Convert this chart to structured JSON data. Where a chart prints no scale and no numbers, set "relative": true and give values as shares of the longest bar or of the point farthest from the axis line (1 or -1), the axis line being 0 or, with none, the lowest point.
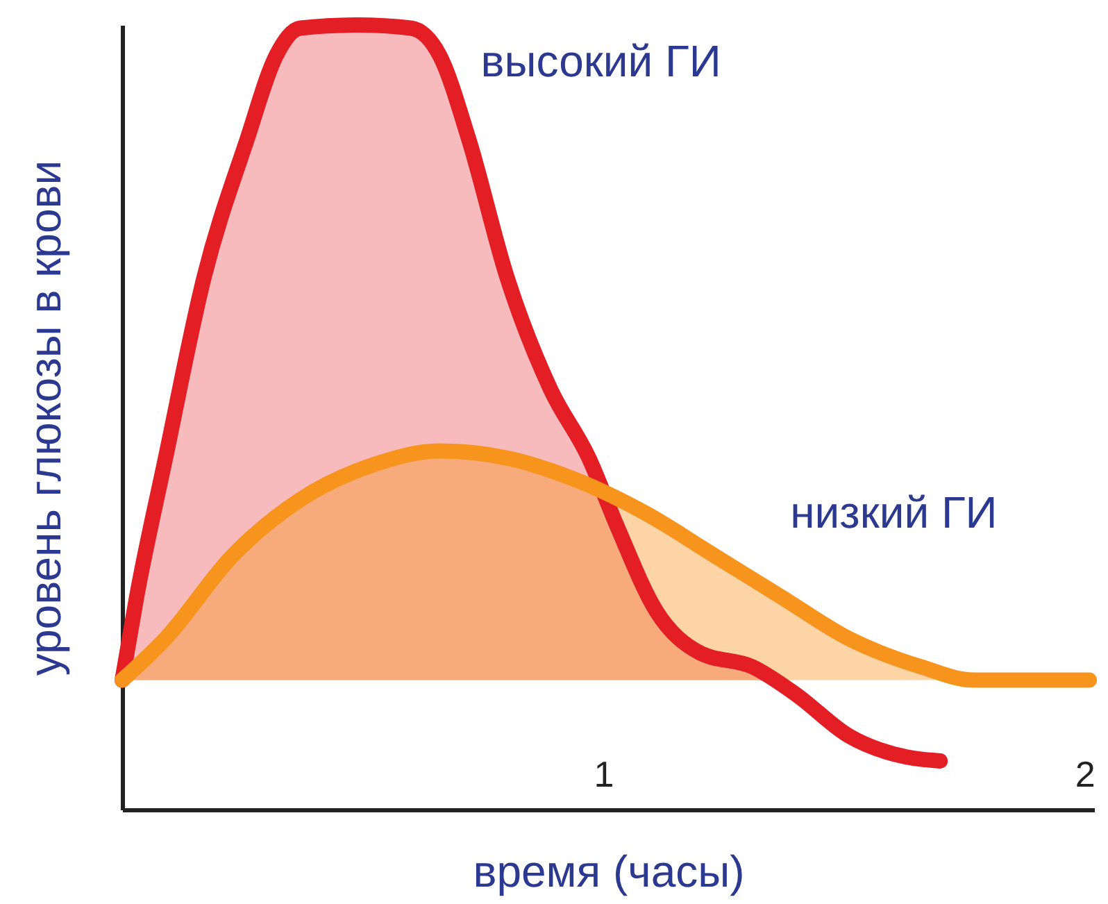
{
  "chart_data": {
    "type": "area",
    "relative": true,
    "xlabel": "время (часы)",
    "ylabel": "уровень глюкозы в крови",
    "xlim": [
      0,
      2.02
    ],
    "xticks": [
      {
        "value": 1,
        "label": "1"
      },
      {
        "value": 2,
        "label": "2"
      }
    ],
    "grid": false,
    "legend": false,
    "marker": "none",
    "line_style": "solid",
    "series": [
      {
        "name": "высокий ГИ",
        "color": "#e31e24",
        "x": [
          0,
          0.03,
          0.09,
          0.17,
          0.26,
          0.32,
          0.37,
          0.49,
          0.6,
          0.66,
          0.72,
          0.8,
          0.89,
          0.97,
          1.03,
          1.11,
          1.2,
          1.31,
          1.4,
          1.51,
          1.63,
          1.7
        ],
        "values": [
          0.165,
          0.271,
          0.448,
          0.678,
          0.855,
          0.961,
          0.996,
          1.0,
          0.996,
          0.961,
          0.855,
          0.678,
          0.536,
          0.448,
          0.359,
          0.253,
          0.2,
          0.182,
          0.147,
          0.094,
          0.067,
          0.062
        ]
      },
      {
        "name": "низкий ГИ",
        "color": "#f7941d",
        "x": [
          0,
          0.09,
          0.23,
          0.37,
          0.52,
          0.66,
          0.8,
          0.94,
          1.09,
          1.23,
          1.37,
          1.51,
          1.66,
          1.77,
          2.01
        ],
        "values": [
          0.165,
          0.218,
          0.324,
          0.395,
          0.439,
          0.457,
          0.448,
          0.421,
          0.377,
          0.324,
          0.271,
          0.218,
          0.182,
          0.165,
          0.165
        ]
      }
    ]
  }
}
